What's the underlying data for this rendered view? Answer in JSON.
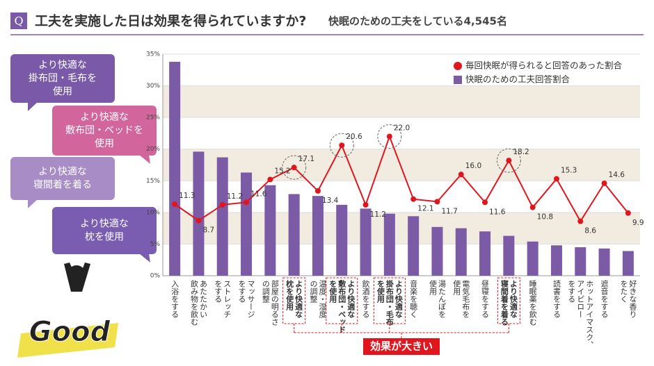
{
  "header": {
    "badge": "Q",
    "title": "工夫を実施した日は効果を得られていますか?",
    "subtitle": "快眠のための工夫をしている4,545名"
  },
  "bubbles": [
    {
      "lines": [
        "より快適な",
        "掛布団・毛布を",
        "使用"
      ],
      "color": "#7a5aa8"
    },
    {
      "lines": [
        "より快適な",
        "敷布団・ベッドを",
        "使用"
      ],
      "color": "#d2659c"
    },
    {
      "lines": [
        "より快適な",
        "寝間着を着る"
      ],
      "color": "#a88cc6"
    },
    {
      "lines": [
        "より快適な",
        "枕を使用"
      ],
      "color": "#7a5cb0"
    }
  ],
  "logo": {
    "text": "Good"
  },
  "chart_data": {
    "type": "bar-line",
    "categories": [
      [
        "入浴をする"
      ],
      [
        "あたたかい",
        "飲み物を飲む"
      ],
      [
        "ストレッチ",
        "をする"
      ],
      [
        "マッサージ",
        "をする"
      ],
      [
        "部屋の明るさ",
        "の調整"
      ],
      [
        "より快適な",
        "枕を使用"
      ],
      [
        "温度・湿度",
        "の調整"
      ],
      [
        "より快適な",
        "敷布団・ベッド",
        "を使用"
      ],
      [
        "飲酒をする"
      ],
      [
        "より快適な",
        "掛布団・毛布",
        "を使用"
      ],
      [
        "音楽を聴く"
      ],
      [
        "湯たんぽを",
        "使用"
      ],
      [
        "電気毛布を",
        "使用"
      ],
      [
        "昼寝をする"
      ],
      [
        "より快適な",
        "寝間着を着る"
      ],
      [
        "睡眠薬を飲む"
      ],
      [
        "読書をする"
      ],
      [
        "ホットアイマスク、",
        "アイピロー",
        "をする"
      ],
      [
        "遮音をする"
      ],
      [
        "好きな香り",
        "をたく"
      ]
    ],
    "series": [
      {
        "name": "毎回快眠が得られると回答のあった割合",
        "type": "line",
        "color": "#e0161e",
        "values": [
          11.3,
          8.7,
          11.2,
          11.6,
          15.2,
          17.1,
          13.4,
          20.6,
          11.2,
          22,
          12.1,
          11.7,
          16,
          11.6,
          18.2,
          10.8,
          15.3,
          8.6,
          14.6,
          9.9
        ],
        "value_labels": [
          "11.3",
          "8.7",
          "11.2",
          "11.6",
          "15.2",
          "17.1",
          "13.4",
          "20.6",
          "11.2",
          "22.0",
          "12.1",
          "11.7",
          "16.0",
          "11.6",
          "18.2",
          "10.8",
          "15.3",
          "8.6",
          "14.6",
          "9.9"
        ]
      },
      {
        "name": "快眠のための工夫回答割合",
        "type": "bar",
        "color": "#7b5aa6",
        "values": [
          33.8,
          19.6,
          18.7,
          16.3,
          14.3,
          12.9,
          12.6,
          11.2,
          10.6,
          9.8,
          9.4,
          7.7,
          7.5,
          7.0,
          6.3,
          5.4,
          4.8,
          4.5,
          4.3,
          3.9
        ]
      }
    ],
    "ylim": [
      0,
      35
    ],
    "yticks": [
      {
        "value": 0,
        "label": "0%"
      },
      {
        "value": 5,
        "label": "5%"
      },
      {
        "value": 10,
        "label": "10%"
      },
      {
        "value": 15,
        "label": "15%"
      },
      {
        "value": 20,
        "label": "20%"
      },
      {
        "value": 25,
        "label": "25%"
      },
      {
        "value": 30,
        "label": "30%"
      },
      {
        "value": 35,
        "label": "35%"
      }
    ],
    "grid": true,
    "legend": "top-right",
    "highlighted": [
      5,
      7,
      9,
      14
    ],
    "annotation": "効果が大きい"
  }
}
